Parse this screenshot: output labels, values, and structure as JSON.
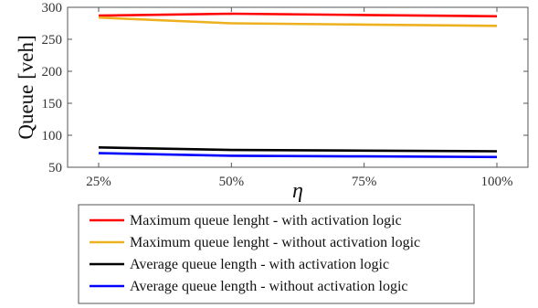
{
  "chart_data": {
    "type": "line",
    "categories": [
      "25%",
      "50%",
      "75%",
      "100%"
    ],
    "xlabel": "η",
    "ylabel": "Queue [veh]",
    "ylim": [
      50,
      300
    ],
    "yticks": [
      50,
      100,
      150,
      200,
      250,
      300
    ],
    "grid": false,
    "legend_position": "bottom",
    "series": [
      {
        "name": "Maximum queue lenght - with activation logic",
        "color": "#ff0000",
        "values": [
          287,
          290,
          288,
          286
        ]
      },
      {
        "name": "Maximum queue lenght - without activation logic",
        "color": "#edb120",
        "values": [
          284,
          275,
          273,
          271
        ]
      },
      {
        "name": "Average queue length - with activation logic",
        "color": "#000000",
        "values": [
          81,
          77,
          76,
          75
        ]
      },
      {
        "name": "Average queue length - without activation logic",
        "color": "#0000ff",
        "values": [
          72,
          68,
          67,
          66
        ]
      }
    ]
  }
}
